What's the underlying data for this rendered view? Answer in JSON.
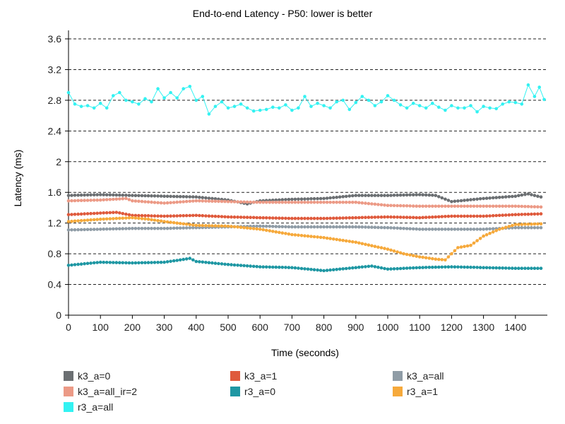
{
  "chart_data": {
    "type": "line",
    "title": "End-to-end Latency - P50: lower is better",
    "xlabel": "Time (seconds)",
    "ylabel": "Latency (ms)",
    "xlim": [
      0,
      1500
    ],
    "ylim": [
      0,
      3.6
    ],
    "xticks": [
      "0",
      "100",
      "200",
      "300",
      "400",
      "500",
      "600",
      "700",
      "800",
      "900",
      "1000",
      "1100",
      "1200",
      "1300",
      "1400"
    ],
    "yticks": [
      "0",
      "0.4",
      "0.8",
      "1.2",
      "1.6",
      "2",
      "2.4",
      "2.8",
      "3.2",
      "3.6"
    ],
    "grid": "horizontal dashed",
    "legend_position": "bottom",
    "series": [
      {
        "name": "k3_a=0",
        "color": "#6b6f72",
        "points": [
          [
            0,
            1.56
          ],
          [
            100,
            1.57
          ],
          [
            200,
            1.56
          ],
          [
            300,
            1.55
          ],
          [
            400,
            1.54
          ],
          [
            500,
            1.5
          ],
          [
            560,
            1.45
          ],
          [
            600,
            1.49
          ],
          [
            700,
            1.51
          ],
          [
            800,
            1.52
          ],
          [
            900,
            1.56
          ],
          [
            1000,
            1.56
          ],
          [
            1100,
            1.57
          ],
          [
            1150,
            1.56
          ],
          [
            1200,
            1.48
          ],
          [
            1300,
            1.52
          ],
          [
            1400,
            1.55
          ],
          [
            1440,
            1.58
          ],
          [
            1480,
            1.54
          ]
        ]
      },
      {
        "name": "k3_a=1",
        "color": "#df5a3c",
        "points": [
          [
            0,
            1.31
          ],
          [
            100,
            1.33
          ],
          [
            150,
            1.34
          ],
          [
            200,
            1.3
          ],
          [
            300,
            1.29
          ],
          [
            400,
            1.3
          ],
          [
            500,
            1.28
          ],
          [
            600,
            1.27
          ],
          [
            700,
            1.26
          ],
          [
            800,
            1.26
          ],
          [
            900,
            1.27
          ],
          [
            1000,
            1.28
          ],
          [
            1100,
            1.27
          ],
          [
            1200,
            1.29
          ],
          [
            1300,
            1.29
          ],
          [
            1400,
            1.31
          ],
          [
            1480,
            1.32
          ]
        ]
      },
      {
        "name": "k3_a=all",
        "color": "#8f9ca6",
        "points": [
          [
            0,
            1.11
          ],
          [
            100,
            1.12
          ],
          [
            200,
            1.13
          ],
          [
            300,
            1.13
          ],
          [
            400,
            1.14
          ],
          [
            500,
            1.15
          ],
          [
            600,
            1.16
          ],
          [
            700,
            1.15
          ],
          [
            800,
            1.15
          ],
          [
            900,
            1.15
          ],
          [
            1000,
            1.14
          ],
          [
            1100,
            1.12
          ],
          [
            1200,
            1.12
          ],
          [
            1300,
            1.12
          ],
          [
            1400,
            1.14
          ],
          [
            1480,
            1.14
          ]
        ]
      },
      {
        "name": "k3_a=all_ir=2",
        "color": "#ec9a86",
        "points": [
          [
            0,
            1.49
          ],
          [
            100,
            1.5
          ],
          [
            180,
            1.52
          ],
          [
            200,
            1.49
          ],
          [
            300,
            1.46
          ],
          [
            400,
            1.49
          ],
          [
            500,
            1.48
          ],
          [
            600,
            1.47
          ],
          [
            700,
            1.47
          ],
          [
            800,
            1.47
          ],
          [
            900,
            1.47
          ],
          [
            1000,
            1.43
          ],
          [
            1100,
            1.42
          ],
          [
            1200,
            1.42
          ],
          [
            1300,
            1.42
          ],
          [
            1400,
            1.42
          ],
          [
            1480,
            1.41
          ]
        ]
      },
      {
        "name": "r3_a=0",
        "color": "#1e97a3",
        "points": [
          [
            0,
            0.65
          ],
          [
            100,
            0.69
          ],
          [
            200,
            0.68
          ],
          [
            300,
            0.69
          ],
          [
            350,
            0.72
          ],
          [
            380,
            0.74
          ],
          [
            400,
            0.7
          ],
          [
            500,
            0.66
          ],
          [
            600,
            0.63
          ],
          [
            700,
            0.62
          ],
          [
            800,
            0.58
          ],
          [
            900,
            0.62
          ],
          [
            950,
            0.64
          ],
          [
            1000,
            0.6
          ],
          [
            1100,
            0.62
          ],
          [
            1200,
            0.63
          ],
          [
            1300,
            0.62
          ],
          [
            1400,
            0.61
          ],
          [
            1480,
            0.61
          ]
        ]
      },
      {
        "name": "r3_a=1",
        "color": "#f6a93b",
        "points": [
          [
            0,
            1.22
          ],
          [
            100,
            1.25
          ],
          [
            200,
            1.27
          ],
          [
            250,
            1.25
          ],
          [
            300,
            1.22
          ],
          [
            400,
            1.17
          ],
          [
            500,
            1.16
          ],
          [
            600,
            1.12
          ],
          [
            700,
            1.05
          ],
          [
            800,
            1.01
          ],
          [
            900,
            0.95
          ],
          [
            1000,
            0.86
          ],
          [
            1050,
            0.8
          ],
          [
            1100,
            0.76
          ],
          [
            1150,
            0.73
          ],
          [
            1180,
            0.72
          ],
          [
            1200,
            0.8
          ],
          [
            1220,
            0.88
          ],
          [
            1260,
            0.91
          ],
          [
            1300,
            1.03
          ],
          [
            1350,
            1.12
          ],
          [
            1400,
            1.18
          ],
          [
            1480,
            1.19
          ]
        ]
      },
      {
        "name": "r3_a=all",
        "color": "#33f2f2",
        "points": [
          [
            0,
            2.9
          ],
          [
            20,
            2.75
          ],
          [
            40,
            2.72
          ],
          [
            60,
            2.73
          ],
          [
            80,
            2.7
          ],
          [
            100,
            2.76
          ],
          [
            120,
            2.7
          ],
          [
            140,
            2.86
          ],
          [
            160,
            2.9
          ],
          [
            180,
            2.8
          ],
          [
            200,
            2.78
          ],
          [
            220,
            2.75
          ],
          [
            240,
            2.82
          ],
          [
            260,
            2.78
          ],
          [
            280,
            2.95
          ],
          [
            300,
            2.83
          ],
          [
            320,
            2.9
          ],
          [
            340,
            2.83
          ],
          [
            360,
            2.95
          ],
          [
            380,
            2.98
          ],
          [
            400,
            2.8
          ],
          [
            420,
            2.85
          ],
          [
            440,
            2.62
          ],
          [
            460,
            2.72
          ],
          [
            480,
            2.78
          ],
          [
            500,
            2.7
          ],
          [
            520,
            2.72
          ],
          [
            540,
            2.75
          ],
          [
            560,
            2.7
          ],
          [
            580,
            2.66
          ],
          [
            600,
            2.67
          ],
          [
            620,
            2.68
          ],
          [
            640,
            2.71
          ],
          [
            660,
            2.7
          ],
          [
            680,
            2.74
          ],
          [
            700,
            2.67
          ],
          [
            720,
            2.7
          ],
          [
            740,
            2.85
          ],
          [
            760,
            2.72
          ],
          [
            780,
            2.76
          ],
          [
            800,
            2.73
          ],
          [
            820,
            2.7
          ],
          [
            840,
            2.78
          ],
          [
            860,
            2.8
          ],
          [
            880,
            2.68
          ],
          [
            900,
            2.77
          ],
          [
            920,
            2.85
          ],
          [
            940,
            2.8
          ],
          [
            960,
            2.73
          ],
          [
            980,
            2.78
          ],
          [
            1000,
            2.86
          ],
          [
            1020,
            2.8
          ],
          [
            1040,
            2.74
          ],
          [
            1060,
            2.7
          ],
          [
            1080,
            2.76
          ],
          [
            1100,
            2.73
          ],
          [
            1120,
            2.7
          ],
          [
            1140,
            2.76
          ],
          [
            1160,
            2.71
          ],
          [
            1180,
            2.67
          ],
          [
            1200,
            2.73
          ],
          [
            1220,
            2.7
          ],
          [
            1240,
            2.7
          ],
          [
            1260,
            2.73
          ],
          [
            1280,
            2.65
          ],
          [
            1300,
            2.72
          ],
          [
            1320,
            2.7
          ],
          [
            1340,
            2.69
          ],
          [
            1360,
            2.75
          ],
          [
            1380,
            2.78
          ],
          [
            1400,
            2.77
          ],
          [
            1420,
            2.75
          ],
          [
            1440,
            3.0
          ],
          [
            1460,
            2.85
          ],
          [
            1475,
            2.97
          ],
          [
            1490,
            2.81
          ]
        ]
      }
    ]
  }
}
